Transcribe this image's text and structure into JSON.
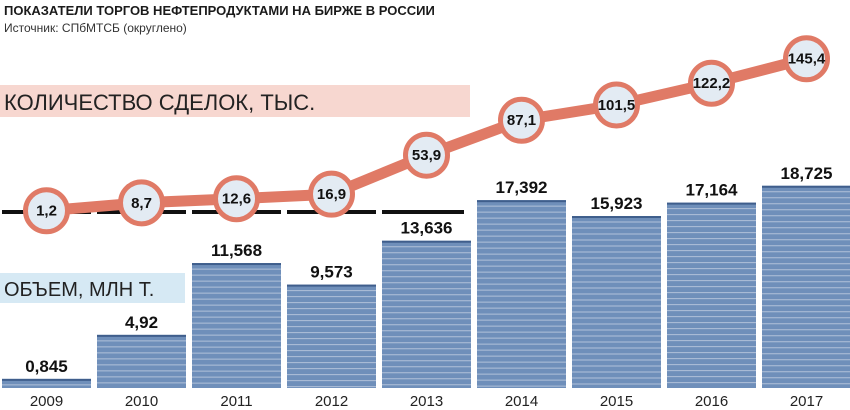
{
  "header": {
    "title": "ПОКАЗАТЕЛИ ТОРГОВ НЕФТЕПРОДУКТАМИ НА БИРЖЕ В РОССИИ",
    "source": "Источник: СПбМТСБ (округлено)"
  },
  "chart_data": {
    "type": "bar",
    "categories": [
      "2009",
      "2010",
      "2011",
      "2012",
      "2013",
      "2014",
      "2015",
      "2016",
      "2017"
    ],
    "series": [
      {
        "name": "ОБЪЕМ, МЛН Т.",
        "type": "bar",
        "values": [
          0.845,
          4.92,
          11.568,
          9.573,
          13.636,
          17.392,
          15.923,
          17.164,
          18.725
        ],
        "labels": [
          "0,845",
          "4,92",
          "11,568",
          "9,573",
          "13,636",
          "17,392",
          "15,923",
          "17,164",
          "18,725"
        ],
        "color": "#6f8fba"
      },
      {
        "name": "КОЛИЧЕСТВО СДЕЛОК, ТЫС.",
        "type": "line",
        "values": [
          1.2,
          8.7,
          12.6,
          16.9,
          53.9,
          87.1,
          101.5,
          122.2,
          145.4
        ],
        "labels": [
          "1,2",
          "8,7",
          "12,6",
          "16,9",
          "53,9",
          "87,1",
          "101,5",
          "122,2",
          "145,4"
        ],
        "color": "#e07a66"
      }
    ],
    "legend": "inline",
    "colors": {
      "bar": "#6f8fba",
      "line": "#e07a66",
      "marker_fill": "#e3ebf3",
      "band_pink": "#f7d7d0",
      "band_blue": "#d6e9f4"
    }
  }
}
